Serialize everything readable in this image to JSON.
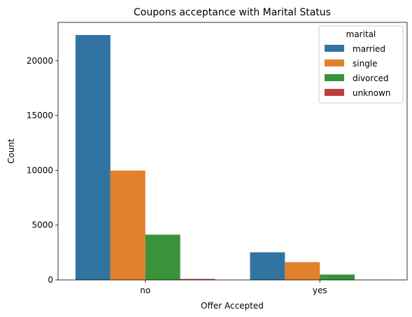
{
  "chart_data": {
    "type": "bar",
    "title": "Coupons acceptance with Marital Status",
    "xlabel": "Offer Accepted",
    "ylabel": "Count",
    "categories": [
      "no",
      "yes"
    ],
    "ylim": [
      0,
      23500
    ],
    "yticks": [
      0,
      5000,
      10000,
      15000,
      20000
    ],
    "grid": false,
    "legend": {
      "title": "marital",
      "placement": "top-right"
    },
    "series": [
      {
        "name": "married",
        "color": "#3274a1",
        "values": [
          22350,
          2520
        ]
      },
      {
        "name": "single",
        "color": "#e1812c",
        "values": [
          9980,
          1620
        ]
      },
      {
        "name": "divorced",
        "color": "#3a923a",
        "values": [
          4130,
          490
        ]
      },
      {
        "name": "unknown",
        "color": "#c03d3e",
        "values": [
          90,
          10
        ]
      }
    ]
  }
}
